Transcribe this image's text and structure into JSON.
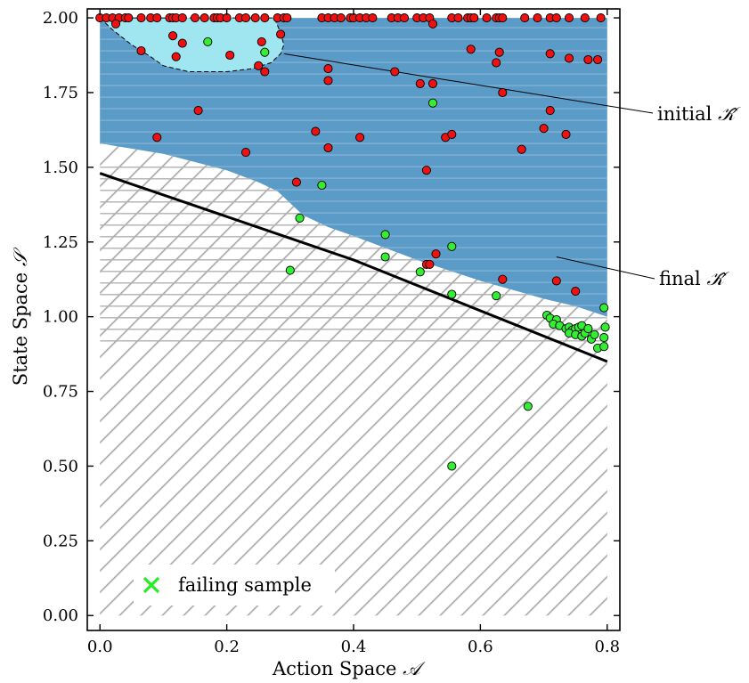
{
  "chart_data": {
    "type": "scatter",
    "xlabel": "Action Space",
    "xlabel_symbol": "𝒜",
    "ylabel": "State Space",
    "ylabel_symbol": "𝒮",
    "xlim": [
      -0.02,
      0.82
    ],
    "ylim": [
      -0.05,
      2.03
    ],
    "x_ticks": [
      0.0,
      0.2,
      0.4,
      0.6,
      0.8
    ],
    "x_tick_labels": [
      "0.0",
      "0.2",
      "0.4",
      "0.6",
      "0.8"
    ],
    "y_ticks": [
      0.0,
      0.25,
      0.5,
      0.75,
      1.0,
      1.25,
      1.5,
      1.75,
      2.0
    ],
    "y_tick_labels": [
      "0.00",
      "0.25",
      "0.50",
      "0.75",
      "1.00",
      "1.25",
      "1.50",
      "1.75",
      "2.00"
    ],
    "grid": false,
    "legend": {
      "position": "bottom-left",
      "label": "failing sample",
      "marker": "x",
      "color": "#22ee22"
    },
    "annotations": [
      {
        "text": "initial",
        "symbol": "𝒦̂",
        "target": [
          0.29,
          1.88
        ]
      },
      {
        "text": "final",
        "symbol": "𝒦̂",
        "target": [
          0.72,
          1.2
        ]
      }
    ],
    "colors": {
      "final_region": "#5b9bc7",
      "initial_region": "#9fe6f0",
      "hatch": "#b0b0b0",
      "failing": "#33ee33",
      "safe": "#ee1111",
      "boundary": "#000000"
    },
    "boundary_line": {
      "x": [
        0.0,
        0.4,
        0.8
      ],
      "y": [
        1.48,
        1.19,
        0.85
      ]
    },
    "final_region": {
      "top_y": 2.0,
      "lower_edge": [
        [
          0.0,
          1.58
        ],
        [
          0.1,
          1.545
        ],
        [
          0.2,
          1.49
        ],
        [
          0.25,
          1.45
        ],
        [
          0.28,
          1.42
        ],
        [
          0.3,
          1.38
        ],
        [
          0.32,
          1.34
        ],
        [
          0.36,
          1.3
        ],
        [
          0.4,
          1.27
        ],
        [
          0.45,
          1.23
        ],
        [
          0.5,
          1.19
        ],
        [
          0.55,
          1.155
        ],
        [
          0.6,
          1.12
        ],
        [
          0.65,
          1.09
        ],
        [
          0.7,
          1.06
        ],
        [
          0.75,
          1.035
        ],
        [
          0.8,
          1.0
        ]
      ]
    },
    "initial_region": {
      "lower_edge": [
        [
          0.0,
          2.0
        ],
        [
          0.02,
          1.96
        ],
        [
          0.05,
          1.91
        ],
        [
          0.08,
          1.87
        ],
        [
          0.1,
          1.84
        ],
        [
          0.14,
          1.82
        ],
        [
          0.2,
          1.82
        ],
        [
          0.24,
          1.83
        ],
        [
          0.27,
          1.85
        ],
        [
          0.285,
          1.88
        ],
        [
          0.29,
          1.91
        ],
        [
          0.285,
          1.95
        ],
        [
          0.275,
          2.0
        ]
      ]
    },
    "series": [
      {
        "kind": "safe",
        "points": [
          [
            0.0,
            2.0
          ],
          [
            0.01,
            2.0
          ],
          [
            0.02,
            2.0
          ],
          [
            0.03,
            2.0
          ],
          [
            0.04,
            2.0
          ],
          [
            0.045,
            2.0
          ],
          [
            0.065,
            2.0
          ],
          [
            0.08,
            2.0
          ],
          [
            0.09,
            2.0
          ],
          [
            0.11,
            2.0
          ],
          [
            0.115,
            2.0
          ],
          [
            0.12,
            2.0
          ],
          [
            0.13,
            2.0
          ],
          [
            0.15,
            2.0
          ],
          [
            0.165,
            2.0
          ],
          [
            0.18,
            2.0
          ],
          [
            0.185,
            2.0
          ],
          [
            0.19,
            2.0
          ],
          [
            0.2,
            2.0
          ],
          [
            0.22,
            2.0
          ],
          [
            0.23,
            2.0
          ],
          [
            0.245,
            2.0
          ],
          [
            0.26,
            2.0
          ],
          [
            0.28,
            2.0
          ],
          [
            0.29,
            2.0
          ],
          [
            0.295,
            2.0
          ],
          [
            0.35,
            2.0
          ],
          [
            0.36,
            2.0
          ],
          [
            0.37,
            2.0
          ],
          [
            0.38,
            2.0
          ],
          [
            0.395,
            2.0
          ],
          [
            0.4,
            2.0
          ],
          [
            0.41,
            2.0
          ],
          [
            0.42,
            2.0
          ],
          [
            0.43,
            2.0
          ],
          [
            0.46,
            2.0
          ],
          [
            0.47,
            2.0
          ],
          [
            0.48,
            2.0
          ],
          [
            0.5,
            2.0
          ],
          [
            0.51,
            2.0
          ],
          [
            0.52,
            2.0
          ],
          [
            0.555,
            2.0
          ],
          [
            0.565,
            2.0
          ],
          [
            0.58,
            2.0
          ],
          [
            0.585,
            2.0
          ],
          [
            0.59,
            2.0
          ],
          [
            0.61,
            2.0
          ],
          [
            0.625,
            2.0
          ],
          [
            0.63,
            2.0
          ],
          [
            0.635,
            2.0
          ],
          [
            0.67,
            2.0
          ],
          [
            0.69,
            2.0
          ],
          [
            0.71,
            2.0
          ],
          [
            0.72,
            2.0
          ],
          [
            0.74,
            2.0
          ],
          [
            0.765,
            2.0
          ],
          [
            0.79,
            2.0
          ],
          [
            0.025,
            1.98
          ],
          [
            0.065,
            1.89
          ],
          [
            0.115,
            1.94
          ],
          [
            0.13,
            1.915
          ],
          [
            0.12,
            1.87
          ],
          [
            0.205,
            1.875
          ],
          [
            0.255,
            1.92
          ],
          [
            0.25,
            1.84
          ],
          [
            0.26,
            1.82
          ],
          [
            0.285,
            1.945
          ],
          [
            0.525,
            1.98
          ],
          [
            0.36,
            1.83
          ],
          [
            0.36,
            1.79
          ],
          [
            0.465,
            1.82
          ],
          [
            0.505,
            1.78
          ],
          [
            0.525,
            1.78
          ],
          [
            0.585,
            1.895
          ],
          [
            0.625,
            1.85
          ],
          [
            0.63,
            1.885
          ],
          [
            0.635,
            1.75
          ],
          [
            0.71,
            1.88
          ],
          [
            0.74,
            1.865
          ],
          [
            0.77,
            1.86
          ],
          [
            0.785,
            1.86
          ],
          [
            0.155,
            1.69
          ],
          [
            0.71,
            1.69
          ],
          [
            0.09,
            1.6
          ],
          [
            0.34,
            1.62
          ],
          [
            0.41,
            1.6
          ],
          [
            0.545,
            1.6
          ],
          [
            0.555,
            1.61
          ],
          [
            0.7,
            1.63
          ],
          [
            0.735,
            1.61
          ],
          [
            0.23,
            1.55
          ],
          [
            0.36,
            1.565
          ],
          [
            0.665,
            1.56
          ],
          [
            0.31,
            1.45
          ],
          [
            0.515,
            1.49
          ],
          [
            0.53,
            1.21
          ],
          [
            0.515,
            1.175
          ],
          [
            0.52,
            1.175
          ],
          [
            0.635,
            1.125
          ],
          [
            0.72,
            1.12
          ],
          [
            0.75,
            1.085
          ],
          [
            0.765,
            0.955
          ]
        ]
      },
      {
        "kind": "failing",
        "points": [
          [
            0.17,
            1.92
          ],
          [
            0.26,
            1.885
          ],
          [
            0.525,
            1.715
          ],
          [
            0.35,
            1.44
          ],
          [
            0.315,
            1.33
          ],
          [
            0.45,
            1.275
          ],
          [
            0.555,
            1.235
          ],
          [
            0.45,
            1.2
          ],
          [
            0.3,
            1.155
          ],
          [
            0.505,
            1.15
          ],
          [
            0.555,
            1.075
          ],
          [
            0.625,
            1.07
          ],
          [
            0.795,
            1.03
          ],
          [
            0.705,
            1.005
          ],
          [
            0.71,
            0.995
          ],
          [
            0.72,
            0.99
          ],
          [
            0.715,
            0.975
          ],
          [
            0.725,
            0.97
          ],
          [
            0.735,
            0.96
          ],
          [
            0.74,
            0.965
          ],
          [
            0.745,
            0.955
          ],
          [
            0.75,
            0.96
          ],
          [
            0.755,
            0.965
          ],
          [
            0.76,
            0.97
          ],
          [
            0.74,
            0.945
          ],
          [
            0.75,
            0.94
          ],
          [
            0.76,
            0.935
          ],
          [
            0.765,
            0.945
          ],
          [
            0.77,
            0.96
          ],
          [
            0.775,
            0.925
          ],
          [
            0.78,
            0.94
          ],
          [
            0.785,
            0.895
          ],
          [
            0.795,
            0.9
          ],
          [
            0.795,
            0.93
          ],
          [
            0.797,
            0.965
          ],
          [
            0.675,
            0.7
          ],
          [
            0.555,
            0.5
          ]
        ]
      }
    ]
  }
}
